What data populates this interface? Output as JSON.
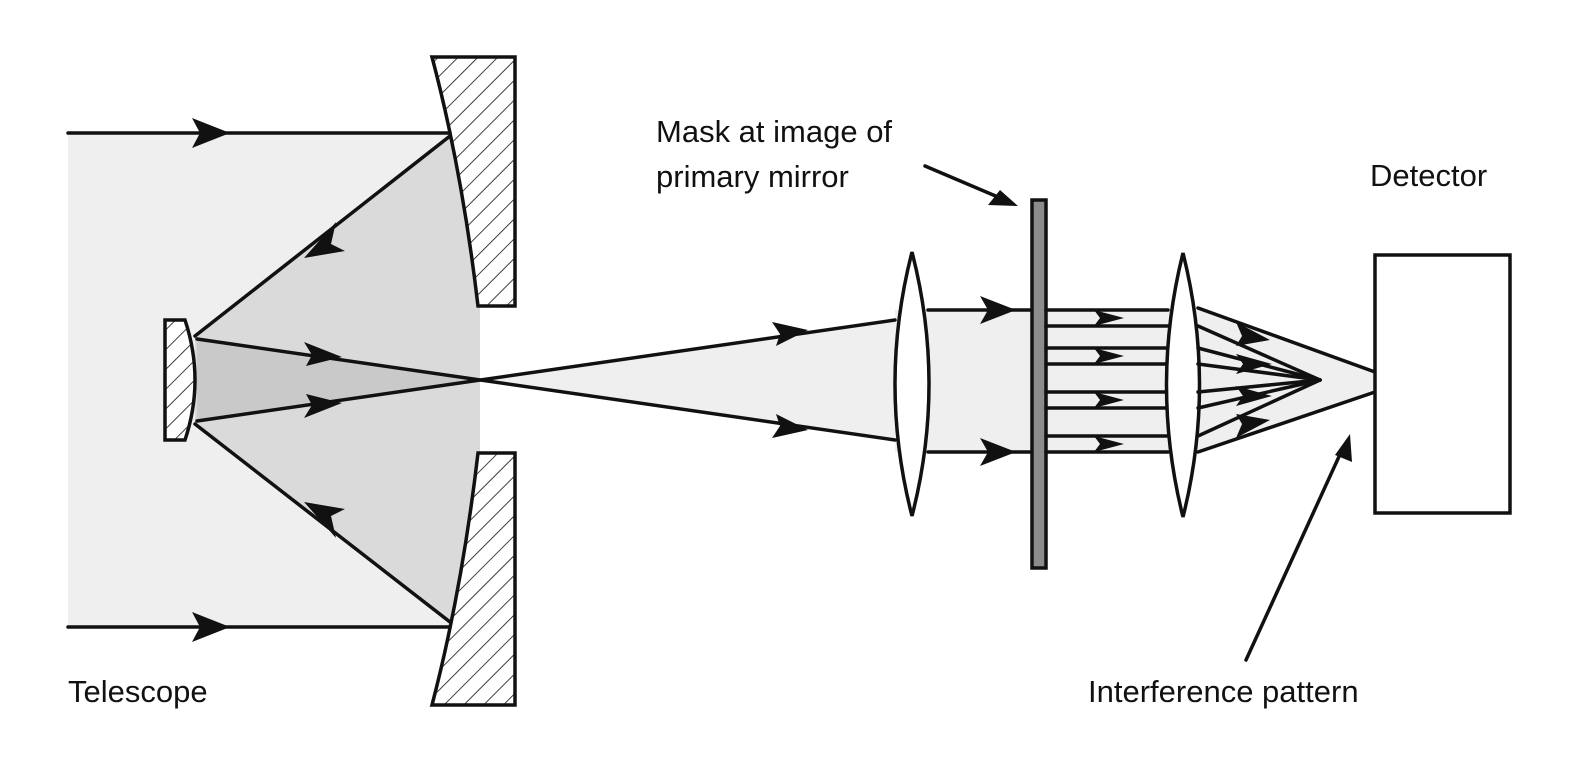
{
  "labels": {
    "telescope": "Telescope",
    "mask_line1": "Mask at image of",
    "mask_line2": "primary mirror",
    "detector": "Detector",
    "interference": "Interference pattern"
  },
  "colors": {
    "light_fill": "#efefef",
    "mid_fill": "#dadada",
    "dark_fill": "#c9c9c9",
    "mask": "#8c8c8c",
    "ink": "#111111",
    "white": "#ffffff"
  },
  "icons": {
    "arrowhead": "filled-triangle-arrowhead",
    "hatch": "diagonal-hatch"
  }
}
